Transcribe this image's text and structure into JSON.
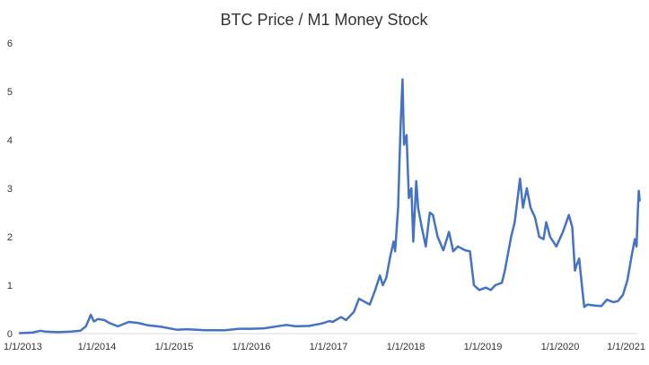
{
  "chart_data": {
    "type": "line",
    "title": "BTC Price / M1 Money Stock",
    "xlabel": "",
    "ylabel": "",
    "ylim": [
      0,
      6
    ],
    "yticks": [
      "0",
      "1",
      "2",
      "3",
      "4",
      "5",
      "6"
    ],
    "xlim": [
      "2013-01-01",
      "2021-01-01"
    ],
    "xticks": [
      "1/1/2013",
      "1/1/2014",
      "1/1/2015",
      "1/1/2016",
      "1/1/2017",
      "1/1/2018",
      "1/1/2019",
      "1/1/2020",
      "1/1/2021"
    ],
    "grid": false,
    "legend": "none",
    "series": [
      {
        "color": "#4472C4",
        "points": [
          [
            "2013-01-01",
            0.01
          ],
          [
            "2013-03-01",
            0.02
          ],
          [
            "2013-04-10",
            0.06
          ],
          [
            "2013-05-01",
            0.04
          ],
          [
            "2013-07-01",
            0.03
          ],
          [
            "2013-09-01",
            0.04
          ],
          [
            "2013-10-15",
            0.06
          ],
          [
            "2013-11-10",
            0.15
          ],
          [
            "2013-11-25",
            0.3
          ],
          [
            "2013-12-03",
            0.39
          ],
          [
            "2013-12-18",
            0.25
          ],
          [
            "2014-01-05",
            0.3
          ],
          [
            "2014-02-05",
            0.28
          ],
          [
            "2014-03-01",
            0.22
          ],
          [
            "2014-04-10",
            0.15
          ],
          [
            "2014-06-01",
            0.24
          ],
          [
            "2014-07-15",
            0.22
          ],
          [
            "2014-09-01",
            0.17
          ],
          [
            "2014-11-01",
            0.14
          ],
          [
            "2015-01-15",
            0.08
          ],
          [
            "2015-03-01",
            0.09
          ],
          [
            "2015-06-01",
            0.07
          ],
          [
            "2015-09-01",
            0.07
          ],
          [
            "2015-11-05",
            0.1
          ],
          [
            "2016-01-01",
            0.1
          ],
          [
            "2016-03-01",
            0.11
          ],
          [
            "2016-06-15",
            0.18
          ],
          [
            "2016-08-01",
            0.15
          ],
          [
            "2016-10-01",
            0.16
          ],
          [
            "2016-12-01",
            0.21
          ],
          [
            "2017-01-05",
            0.26
          ],
          [
            "2017-01-20",
            0.24
          ],
          [
            "2017-03-01",
            0.34
          ],
          [
            "2017-03-25",
            0.28
          ],
          [
            "2017-05-01",
            0.45
          ],
          [
            "2017-05-25",
            0.72
          ],
          [
            "2017-06-12",
            0.68
          ],
          [
            "2017-07-15",
            0.6
          ],
          [
            "2017-08-10",
            0.9
          ],
          [
            "2017-09-01",
            1.2
          ],
          [
            "2017-09-15",
            1.0
          ],
          [
            "2017-10-01",
            1.15
          ],
          [
            "2017-10-20",
            1.6
          ],
          [
            "2017-11-05",
            1.9
          ],
          [
            "2017-11-12",
            1.7
          ],
          [
            "2017-11-26",
            2.6
          ],
          [
            "2017-12-07",
            4.2
          ],
          [
            "2017-12-17",
            5.25
          ],
          [
            "2017-12-24",
            3.9
          ],
          [
            "2018-01-05",
            4.1
          ],
          [
            "2018-01-16",
            2.8
          ],
          [
            "2018-01-28",
            3.0
          ],
          [
            "2018-02-06",
            1.9
          ],
          [
            "2018-02-20",
            3.15
          ],
          [
            "2018-03-01",
            2.6
          ],
          [
            "2018-03-18",
            2.2
          ],
          [
            "2018-04-06",
            1.8
          ],
          [
            "2018-04-25",
            2.5
          ],
          [
            "2018-05-10",
            2.45
          ],
          [
            "2018-06-01",
            2.0
          ],
          [
            "2018-06-28",
            1.72
          ],
          [
            "2018-07-25",
            2.1
          ],
          [
            "2018-08-14",
            1.7
          ],
          [
            "2018-09-05",
            1.8
          ],
          [
            "2018-10-10",
            1.72
          ],
          [
            "2018-11-01",
            1.7
          ],
          [
            "2018-11-20",
            1.0
          ],
          [
            "2018-12-15",
            0.9
          ],
          [
            "2019-01-15",
            0.95
          ],
          [
            "2019-02-08",
            0.9
          ],
          [
            "2019-03-01",
            1.0
          ],
          [
            "2019-04-01",
            1.05
          ],
          [
            "2019-04-15",
            1.3
          ],
          [
            "2019-05-15",
            2.0
          ],
          [
            "2019-06-01",
            2.3
          ],
          [
            "2019-06-26",
            3.2
          ],
          [
            "2019-07-10",
            2.6
          ],
          [
            "2019-07-28",
            3.0
          ],
          [
            "2019-08-15",
            2.6
          ],
          [
            "2019-09-05",
            2.4
          ],
          [
            "2019-09-25",
            2.0
          ],
          [
            "2019-10-15",
            1.95
          ],
          [
            "2019-10-28",
            2.3
          ],
          [
            "2019-11-15",
            2.0
          ],
          [
            "2019-12-15",
            1.8
          ],
          [
            "2020-01-15",
            2.1
          ],
          [
            "2020-02-12",
            2.45
          ],
          [
            "2020-02-28",
            2.2
          ],
          [
            "2020-03-12",
            1.3
          ],
          [
            "2020-03-18",
            1.4
          ],
          [
            "2020-04-01",
            1.55
          ],
          [
            "2020-04-15",
            0.95
          ],
          [
            "2020-04-25",
            0.55
          ],
          [
            "2020-05-10",
            0.6
          ],
          [
            "2020-06-15",
            0.58
          ],
          [
            "2020-07-15",
            0.57
          ],
          [
            "2020-08-10",
            0.7
          ],
          [
            "2020-09-10",
            0.65
          ],
          [
            "2020-10-01",
            0.67
          ],
          [
            "2020-10-25",
            0.8
          ],
          [
            "2020-11-15",
            1.1
          ],
          [
            "2020-12-05",
            1.6
          ],
          [
            "2020-12-20",
            1.95
          ],
          [
            "2020-12-28",
            1.8
          ],
          [
            "2021-01-03",
            2.5
          ],
          [
            "2021-01-08",
            2.95
          ],
          [
            "2021-01-12",
            2.75
          ]
        ]
      }
    ]
  }
}
